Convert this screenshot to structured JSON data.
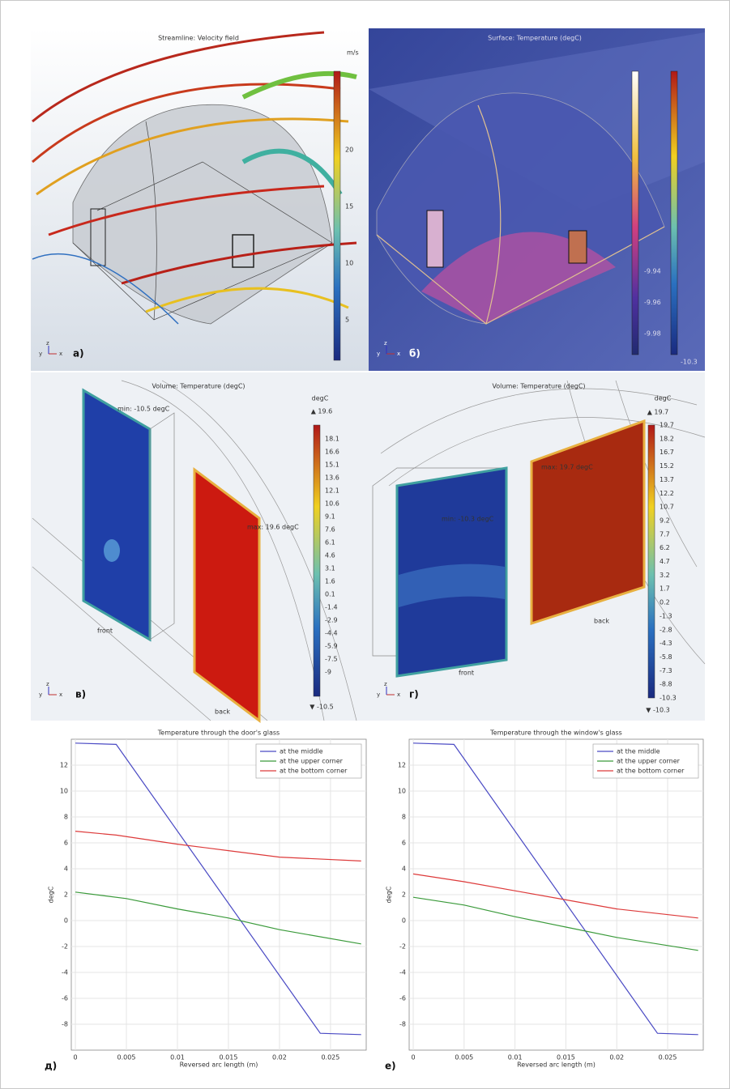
{
  "panels": [
    {
      "label": "а)",
      "title": "Streamline: Velocity field",
      "unit": "m/s",
      "ticks": [
        20,
        15,
        10,
        5
      ],
      "triad": [
        "y",
        "z",
        "x"
      ]
    },
    {
      "label": "б)",
      "title": "Surface: Temperature (degC)",
      "left_ticks": [
        -9.94,
        -9.96,
        -9.98
      ],
      "right_ticks": [
        -10.3
      ],
      "triad": [
        "y",
        "z",
        "x"
      ]
    },
    {
      "label": "в)",
      "title": "Volume: Temperature (degC)",
      "unit": "degC",
      "max_label": "▲ 19.6",
      "min_label": "▼ -10.5",
      "ticks": [
        18.1,
        16.6,
        15.1,
        13.6,
        12.1,
        10.6,
        9.1,
        7.6,
        6.1,
        4.6,
        3.1,
        1.6,
        0.1,
        -1.4,
        -2.9,
        -4.4,
        -5.9,
        -7.5,
        -9
      ],
      "annotations": [
        "min: -10.5 degC",
        "max: 19.6 degC",
        "front",
        "back"
      ],
      "triad": [
        "y",
        "z",
        "x"
      ]
    },
    {
      "label": "г)",
      "title": "Volume: Temperature (degC)",
      "unit": "degC",
      "max_label": "▲ 19.7",
      "min_label": "▼ -10.3",
      "ticks": [
        19.7,
        18.2,
        16.7,
        15.2,
        13.7,
        12.2,
        10.7,
        9.2,
        7.7,
        6.2,
        4.7,
        3.2,
        1.7,
        0.2,
        -1.3,
        -2.8,
        -4.3,
        -5.8,
        -7.3,
        -8.8,
        -10.3
      ],
      "annotations": [
        "min: -10.3 degC",
        "max: 19.7 degC",
        "front",
        "back"
      ],
      "triad": [
        "y",
        "z",
        "x"
      ]
    }
  ],
  "chart_data": [
    {
      "type": "line",
      "title": "Temperature through the door's glass",
      "panel_label": "д)",
      "x_label": "Reversed arc length (m)",
      "y_label": "degC",
      "xlim": [
        -0.0004,
        0.0285
      ],
      "ylim": [
        -10,
        14
      ],
      "xticks": [
        0,
        0.005,
        0.01,
        0.015,
        0.02,
        0.025
      ],
      "yticks": [
        -8,
        -6,
        -4,
        -2,
        0,
        2,
        4,
        6,
        8,
        10,
        12
      ],
      "grid": true,
      "legend": "top-right",
      "series": [
        {
          "name": "at the middle",
          "color": "#4a4ac4",
          "x": [
            0,
            0.004,
            0.024,
            0.028
          ],
          "values": [
            13.7,
            13.6,
            -8.7,
            -8.8
          ]
        },
        {
          "name": "at the upper corner",
          "color": "#3a9a3a",
          "x": [
            0,
            0.005,
            0.01,
            0.015,
            0.02,
            0.028
          ],
          "values": [
            2.2,
            1.7,
            0.9,
            0.2,
            -0.7,
            -1.8
          ]
        },
        {
          "name": "at the bottom corner",
          "color": "#dd3a3a",
          "x": [
            0,
            0.004,
            0.01,
            0.015,
            0.02,
            0.028
          ],
          "values": [
            6.9,
            6.6,
            5.9,
            5.4,
            4.9,
            4.6
          ]
        }
      ]
    },
    {
      "type": "line",
      "title": "Temperature through the window's glass",
      "panel_label": "е)",
      "x_label": "Reversed arc length (m)",
      "y_label": "degC",
      "xlim": [
        -0.0004,
        0.0285
      ],
      "ylim": [
        -10,
        14
      ],
      "xticks": [
        0,
        0.005,
        0.01,
        0.015,
        0.02,
        0.025
      ],
      "yticks": [
        -8,
        -6,
        -4,
        -2,
        0,
        2,
        4,
        6,
        8,
        10,
        12
      ],
      "grid": true,
      "legend": "top-right",
      "series": [
        {
          "name": "at the middle",
          "color": "#4a4ac4",
          "x": [
            0,
            0.004,
            0.024,
            0.028
          ],
          "values": [
            13.7,
            13.6,
            -8.7,
            -8.8
          ]
        },
        {
          "name": "at the upper corner",
          "color": "#3a9a3a",
          "x": [
            0,
            0.005,
            0.01,
            0.015,
            0.02,
            0.028
          ],
          "values": [
            1.8,
            1.2,
            0.3,
            -0.5,
            -1.3,
            -2.3
          ]
        },
        {
          "name": "at the bottom corner",
          "color": "#dd3a3a",
          "x": [
            0,
            0.005,
            0.01,
            0.015,
            0.02,
            0.028
          ],
          "values": [
            3.6,
            3.0,
            2.3,
            1.6,
            0.9,
            0.2
          ]
        }
      ]
    }
  ]
}
